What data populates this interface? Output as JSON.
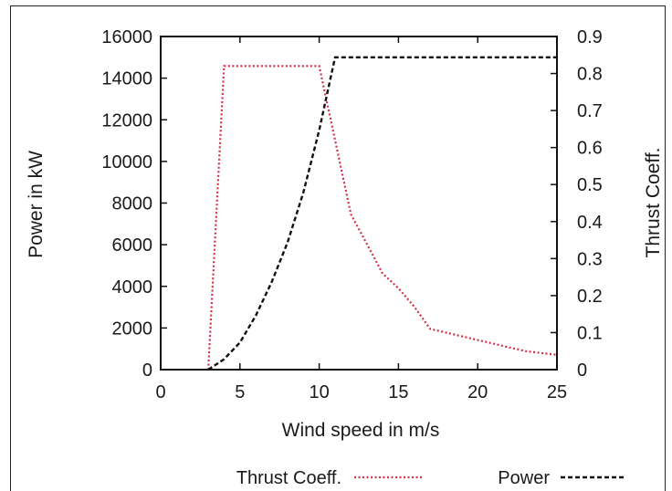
{
  "chart_data": {
    "type": "line",
    "xlabel": "Wind speed in m/s",
    "ylabel": "Power in kW",
    "y2label": "Thrust Coeff.",
    "xlim": [
      0,
      25
    ],
    "ylim": [
      0,
      16000
    ],
    "y2lim": [
      0,
      0.9
    ],
    "xticks": [
      0,
      5,
      10,
      15,
      20,
      25
    ],
    "yticks": [
      0,
      2000,
      4000,
      6000,
      8000,
      10000,
      12000,
      14000,
      16000
    ],
    "y2ticks": [
      0,
      0.1,
      0.2,
      0.3,
      0.4,
      0.5,
      0.6,
      0.7,
      0.8,
      0.9
    ],
    "grid": false,
    "legend_position": "bottom",
    "series": [
      {
        "name": "Thrust Coeff.",
        "axis": "right",
        "color": "#d0304a",
        "style": "dotted",
        "x": [
          3,
          4,
          5,
          6,
          7,
          8,
          9,
          10,
          11,
          12,
          13,
          14,
          15,
          16,
          17,
          18,
          19,
          20,
          21,
          22,
          23,
          24,
          25
        ],
        "y": [
          0,
          0.82,
          0.82,
          0.82,
          0.82,
          0.82,
          0.82,
          0.82,
          0.62,
          0.42,
          0.34,
          0.26,
          0.22,
          0.17,
          0.11,
          0.1,
          0.09,
          0.08,
          0.07,
          0.06,
          0.05,
          0.045,
          0.04
        ]
      },
      {
        "name": "Power",
        "axis": "left",
        "color": "#111111",
        "style": "dashed",
        "x": [
          3,
          4,
          5,
          6,
          7,
          8,
          9,
          10,
          11,
          12,
          13,
          14,
          15,
          16,
          17,
          18,
          19,
          20,
          21,
          22,
          23,
          24,
          25
        ],
        "y": [
          0,
          500,
          1300,
          2600,
          4200,
          6100,
          8500,
          11500,
          15000,
          15000,
          15000,
          15000,
          15000,
          15000,
          15000,
          15000,
          15000,
          15000,
          15000,
          15000,
          15000,
          15000,
          15000
        ]
      }
    ]
  }
}
